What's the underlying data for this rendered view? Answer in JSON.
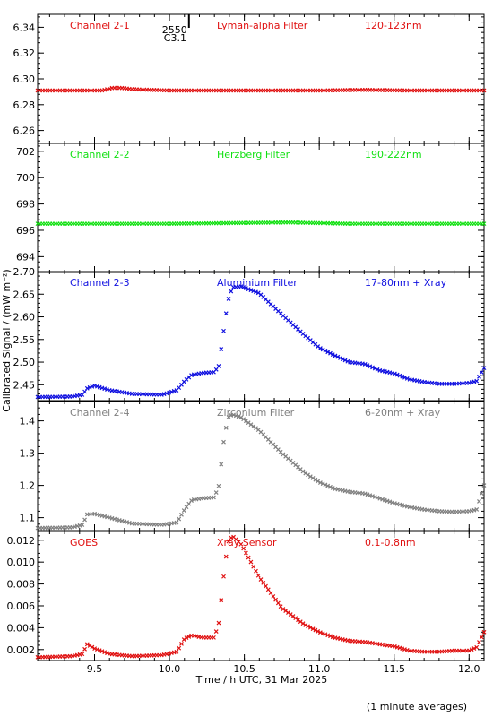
{
  "chart_data": {
    "type": "scatter",
    "xlabel": "Time / h UTC, 31 Mar 2025",
    "ylabel": "Calibrated Signal / (mW m⁻²)",
    "footnote": "(1 minute averages)",
    "xlim": [
      9.12,
      12.1
    ],
    "x_ticks": [
      "9.5",
      "10.0",
      "10.5",
      "11.0",
      "11.5",
      "12.0"
    ],
    "x_tick_values": [
      9.5,
      10.0,
      10.5,
      11.0,
      11.5,
      12.0
    ],
    "flare_marker": {
      "x": 10.13,
      "label_time": "2550",
      "label_class": "C3.1"
    },
    "panels": [
      {
        "channel": "Channel 2-1",
        "filter": "Lyman-alpha Filter",
        "band": "120-123nm",
        "color": "#e01010",
        "ylim": [
          6.25,
          6.35
        ],
        "y_ticks": [
          "6.26",
          "6.28",
          "6.30",
          "6.32",
          "6.34"
        ],
        "y_tick_values": [
          6.26,
          6.28,
          6.3,
          6.32,
          6.34
        ],
        "points": [
          [
            9.12,
            6.291
          ],
          [
            9.55,
            6.291
          ],
          [
            9.62,
            6.293
          ],
          [
            9.68,
            6.293
          ],
          [
            9.75,
            6.292
          ],
          [
            10.0,
            6.291
          ],
          [
            10.5,
            6.291
          ],
          [
            11.0,
            6.291
          ],
          [
            11.3,
            6.2915
          ],
          [
            11.6,
            6.291
          ],
          [
            12.1,
            6.291
          ]
        ]
      },
      {
        "channel": "Channel 2-2",
        "filter": "Herzberg Filter",
        "band": "190-222nm",
        "color": "#10e010",
        "ylim": [
          692.8,
          702.6
        ],
        "y_ticks": [
          "694",
          "696",
          "698",
          "700",
          "702"
        ],
        "y_tick_values": [
          694,
          696,
          698,
          700,
          702
        ],
        "points": [
          [
            9.12,
            696.5
          ],
          [
            10.0,
            696.5
          ],
          [
            10.4,
            696.55
          ],
          [
            10.8,
            696.6
          ],
          [
            11.2,
            696.5
          ],
          [
            12.1,
            696.5
          ]
        ]
      },
      {
        "channel": "Channel 2-3",
        "filter": "Aluminium Filter",
        "band": "17-80nm + Xray",
        "color": "#1010e0",
        "ylim": [
          2.415,
          2.7
        ],
        "y_ticks": [
          "2.45",
          "2.50",
          "2.55",
          "2.60",
          "2.65",
          "2.70"
        ],
        "y_tick_values": [
          2.45,
          2.5,
          2.55,
          2.6,
          2.65,
          2.7
        ],
        "points": [
          [
            9.12,
            2.423
          ],
          [
            9.35,
            2.424
          ],
          [
            9.42,
            2.428
          ],
          [
            9.45,
            2.442
          ],
          [
            9.5,
            2.448
          ],
          [
            9.6,
            2.438
          ],
          [
            9.75,
            2.43
          ],
          [
            9.95,
            2.428
          ],
          [
            10.05,
            2.438
          ],
          [
            10.1,
            2.458
          ],
          [
            10.15,
            2.472
          ],
          [
            10.22,
            2.476
          ],
          [
            10.3,
            2.478
          ],
          [
            10.33,
            2.492
          ],
          [
            10.36,
            2.565
          ],
          [
            10.39,
            2.635
          ],
          [
            10.42,
            2.665
          ],
          [
            10.48,
            2.667
          ],
          [
            10.6,
            2.652
          ],
          [
            10.75,
            2.605
          ],
          [
            10.9,
            2.56
          ],
          [
            11.0,
            2.532
          ],
          [
            11.1,
            2.515
          ],
          [
            11.2,
            2.5
          ],
          [
            11.3,
            2.496
          ],
          [
            11.4,
            2.482
          ],
          [
            11.5,
            2.475
          ],
          [
            11.6,
            2.462
          ],
          [
            11.7,
            2.456
          ],
          [
            11.8,
            2.452
          ],
          [
            11.9,
            2.452
          ],
          [
            12.0,
            2.454
          ],
          [
            12.05,
            2.458
          ],
          [
            12.1,
            2.487
          ]
        ]
      },
      {
        "channel": "Channel 2-4",
        "filter": "Zirconium Filter",
        "band": "6-20nm + Xray",
        "color": "#808080",
        "ylim": [
          1.06,
          1.46
        ],
        "y_ticks": [
          "1.1",
          "1.2",
          "1.3",
          "1.4"
        ],
        "y_tick_values": [
          1.1,
          1.2,
          1.3,
          1.4
        ],
        "points": [
          [
            9.12,
            1.068
          ],
          [
            9.35,
            1.07
          ],
          [
            9.42,
            1.078
          ],
          [
            9.45,
            1.11
          ],
          [
            9.5,
            1.112
          ],
          [
            9.6,
            1.1
          ],
          [
            9.75,
            1.082
          ],
          [
            9.95,
            1.078
          ],
          [
            10.05,
            1.085
          ],
          [
            10.1,
            1.125
          ],
          [
            10.15,
            1.155
          ],
          [
            10.22,
            1.16
          ],
          [
            10.3,
            1.163
          ],
          [
            10.33,
            1.2
          ],
          [
            10.36,
            1.33
          ],
          [
            10.39,
            1.41
          ],
          [
            10.42,
            1.42
          ],
          [
            10.48,
            1.41
          ],
          [
            10.6,
            1.37
          ],
          [
            10.75,
            1.3
          ],
          [
            10.9,
            1.24
          ],
          [
            11.0,
            1.21
          ],
          [
            11.1,
            1.19
          ],
          [
            11.2,
            1.18
          ],
          [
            11.3,
            1.175
          ],
          [
            11.4,
            1.16
          ],
          [
            11.5,
            1.145
          ],
          [
            11.6,
            1.133
          ],
          [
            11.7,
            1.125
          ],
          [
            11.8,
            1.12
          ],
          [
            11.9,
            1.118
          ],
          [
            12.0,
            1.12
          ],
          [
            12.05,
            1.125
          ],
          [
            12.1,
            1.2
          ]
        ]
      },
      {
        "channel": "GOES",
        "filter": "Xray Sensor",
        "band": "0.1-0.8nm",
        "color": "#e01010",
        "ylim": [
          0.001,
          0.0128
        ],
        "y_ticks": [
          "0.002",
          "0.004",
          "0.006",
          "0.008",
          "0.010",
          "0.012"
        ],
        "y_tick_values": [
          0.002,
          0.004,
          0.006,
          0.008,
          0.01,
          0.012
        ],
        "points": [
          [
            9.12,
            0.0013
          ],
          [
            9.35,
            0.0014
          ],
          [
            9.42,
            0.0016
          ],
          [
            9.45,
            0.0025
          ],
          [
            9.5,
            0.0021
          ],
          [
            9.6,
            0.0016
          ],
          [
            9.75,
            0.0014
          ],
          [
            9.95,
            0.0015
          ],
          [
            10.05,
            0.0018
          ],
          [
            10.1,
            0.003
          ],
          [
            10.15,
            0.0033
          ],
          [
            10.22,
            0.0031
          ],
          [
            10.3,
            0.0031
          ],
          [
            10.33,
            0.0045
          ],
          [
            10.36,
            0.0085
          ],
          [
            10.39,
            0.0118
          ],
          [
            10.42,
            0.0124
          ],
          [
            10.48,
            0.0116
          ],
          [
            10.6,
            0.0086
          ],
          [
            10.75,
            0.0058
          ],
          [
            10.9,
            0.0043
          ],
          [
            11.0,
            0.0036
          ],
          [
            11.1,
            0.0031
          ],
          [
            11.2,
            0.0028
          ],
          [
            11.3,
            0.0027
          ],
          [
            11.4,
            0.0025
          ],
          [
            11.5,
            0.0023
          ],
          [
            11.6,
            0.0019
          ],
          [
            11.7,
            0.0018
          ],
          [
            11.8,
            0.0018
          ],
          [
            11.9,
            0.0019
          ],
          [
            12.0,
            0.0019
          ],
          [
            12.05,
            0.0022
          ],
          [
            12.1,
            0.0036
          ]
        ]
      }
    ]
  }
}
